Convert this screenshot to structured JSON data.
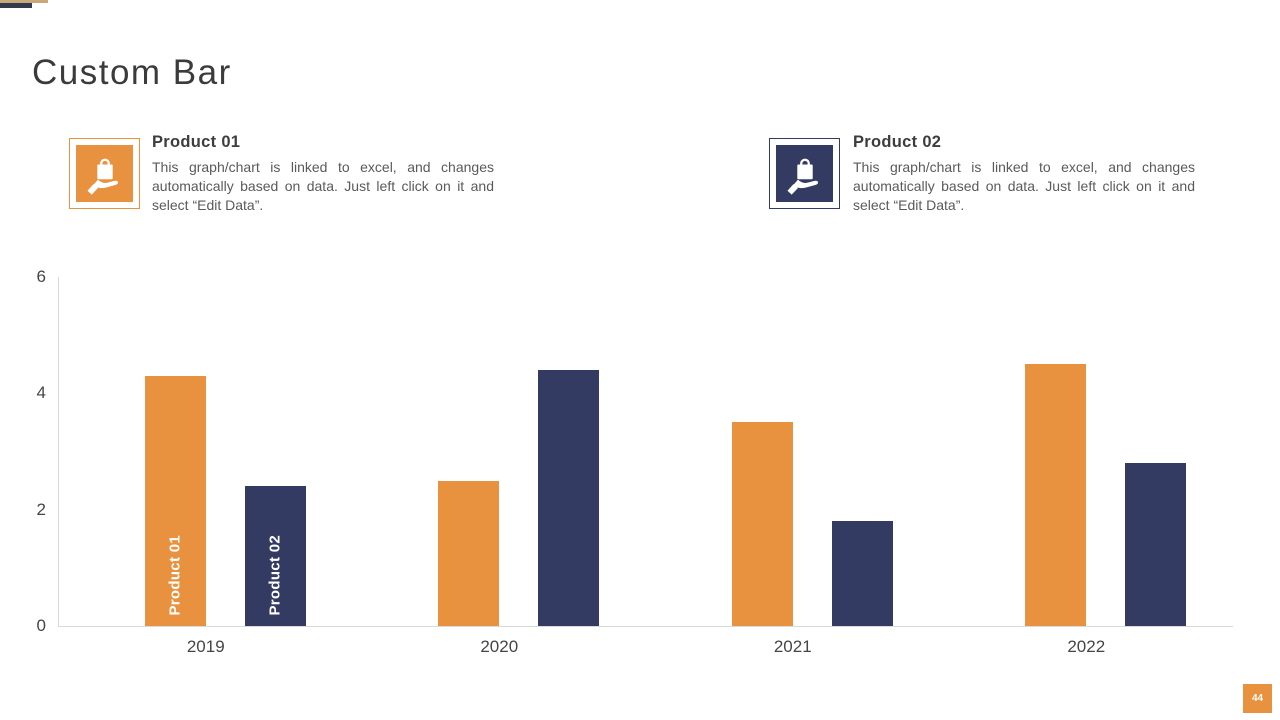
{
  "slide": {
    "title": "Custom Bar",
    "page_number": "44"
  },
  "colors": {
    "accent_orange": "#e8923f",
    "accent_navy": "#343b63",
    "deco_tan": "#c9a87c",
    "deco_navy": "#333a4f",
    "axis_line": "#d9d9d9",
    "title_text": "#3b3b3b",
    "body_text": "#5a5a5a"
  },
  "callouts": [
    {
      "name": "Product 01",
      "description": "This graph/chart is linked to excel, and changes automatically based on data. Just left click on it and select “Edit Data”.",
      "icon": "hand-holding-bag-icon",
      "color": "#e8923f"
    },
    {
      "name": "Product 02",
      "description": "This graph/chart is linked to excel, and changes automatically based on data. Just left click on it and select “Edit Data”.",
      "icon": "hand-holding-bag-icon",
      "color": "#343b63"
    }
  ],
  "chart_data": {
    "type": "bar",
    "categories": [
      "2019",
      "2020",
      "2021",
      "2022"
    ],
    "series": [
      {
        "name": "Product 01",
        "color": "#e8923f",
        "values": [
          4.3,
          2.5,
          3.5,
          4.5
        ]
      },
      {
        "name": "Product 02",
        "color": "#343b63",
        "values": [
          2.4,
          4.4,
          1.8,
          2.8
        ]
      }
    ],
    "title": "",
    "xlabel": "",
    "ylabel": "",
    "ylim": [
      0,
      6
    ],
    "yticks": [
      0,
      2,
      4,
      6
    ],
    "grid": false,
    "legend": "in-bar labels on first category only",
    "bar_labels_first_group": [
      "Product 01",
      "Product 02"
    ]
  }
}
